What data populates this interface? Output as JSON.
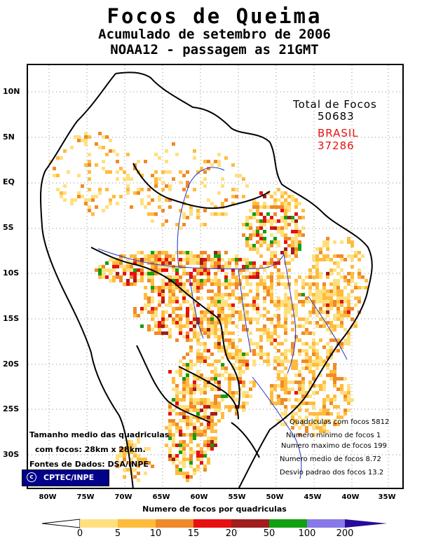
{
  "header": {
    "title": "Focos de Queima",
    "subtitle": "Acumulado de setembro de 2006",
    "pass": "NOAA12 - passagem as 21GMT"
  },
  "totals": {
    "label": "Total de Focos",
    "total": "50683",
    "brasil_label": "BRASIL",
    "brasil": "37286"
  },
  "stats": [
    "Quadriculas com focos 5812",
    "Numero minimo de focos 1",
    "Numero maximo de focos 199",
    "Numero medio de focos 8.72",
    "Desvio padrao dos focos 13.2"
  ],
  "notes": {
    "line1": "Tamanho medio das quadriculas",
    "line2": "com focos: 28km x 28km.",
    "line3": "Fontes de Dados: DSA/INPE"
  },
  "credit": {
    "symbol": "c",
    "text": "CPTEC/INPE"
  },
  "axes": {
    "lat_labels": [
      "10N",
      "5N",
      "EQ",
      "5S",
      "10S",
      "15S",
      "20S",
      "25S",
      "30S"
    ],
    "lon_labels": [
      "80W",
      "75W",
      "70W",
      "65W",
      "60W",
      "55W",
      "50W",
      "45W",
      "40W",
      "35W"
    ]
  },
  "legend": {
    "title": "Numero de focos por quadriculas",
    "ticks": [
      "0",
      "5",
      "10",
      "15",
      "20",
      "50",
      "100",
      "200"
    ],
    "colors": [
      "#ffe080",
      "#ffbc3c",
      "#f08a28",
      "#e81010",
      "#a01e1e",
      "#10a010",
      "#8878e8",
      "#2a0a9c"
    ]
  }
}
